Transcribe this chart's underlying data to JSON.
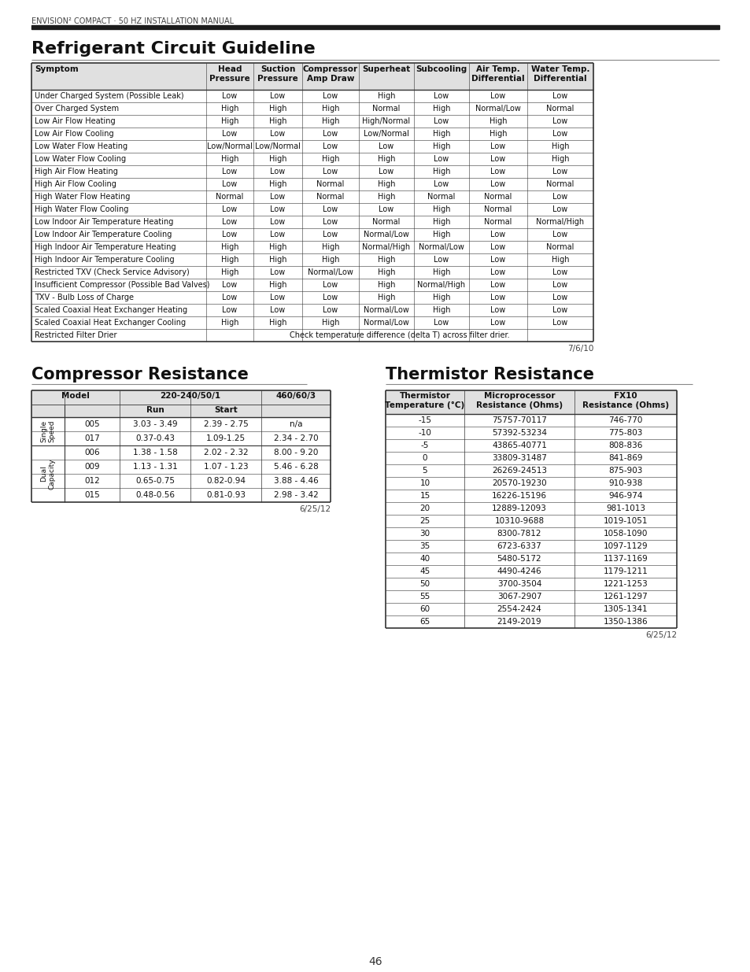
{
  "page_header": "ENVISION² COMPACT · 50 HZ INSTALLATION MANUAL",
  "section1_title": "Refrigerant Circuit Guideline",
  "section2_title": "Compressor Resistance",
  "section3_title": "Thermistor Resistance",
  "page_number": "46",
  "refrig_headers": [
    "Symptom",
    "Head\nPressure",
    "Suction\nPressure",
    "Compressor\nAmp Draw",
    "Superheat",
    "Subcooling",
    "Air Temp.\nDifferential",
    "Water Temp.\nDifferential"
  ],
  "refrig_data": [
    [
      "Under Charged System (Possible Leak)",
      "Low",
      "Low",
      "Low",
      "High",
      "Low",
      "Low",
      "Low"
    ],
    [
      "Over Charged System",
      "High",
      "High",
      "High",
      "Normal",
      "High",
      "Normal/Low",
      "Normal"
    ],
    [
      "Low Air Flow Heating",
      "High",
      "High",
      "High",
      "High/Normal",
      "Low",
      "High",
      "Low"
    ],
    [
      "Low Air Flow Cooling",
      "Low",
      "Low",
      "Low",
      "Low/Normal",
      "High",
      "High",
      "Low"
    ],
    [
      "Low Water Flow Heating",
      "Low/Normal",
      "Low/Normal",
      "Low",
      "Low",
      "High",
      "Low",
      "High"
    ],
    [
      "Low Water Flow Cooling",
      "High",
      "High",
      "High",
      "High",
      "Low",
      "Low",
      "High"
    ],
    [
      "High Air Flow Heating",
      "Low",
      "Low",
      "Low",
      "Low",
      "High",
      "Low",
      "Low"
    ],
    [
      "High Air Flow Cooling",
      "Low",
      "High",
      "Normal",
      "High",
      "Low",
      "Low",
      "Normal"
    ],
    [
      "High Water Flow Heating",
      "Normal",
      "Low",
      "Normal",
      "High",
      "Normal",
      "Normal",
      "Low"
    ],
    [
      "High Water Flow Cooling",
      "Low",
      "Low",
      "Low",
      "Low",
      "High",
      "Normal",
      "Low"
    ],
    [
      "Low Indoor Air Temperature Heating",
      "Low",
      "Low",
      "Low",
      "Normal",
      "High",
      "Normal",
      "Normal/High"
    ],
    [
      "Low Indoor Air Temperature Cooling",
      "Low",
      "Low",
      "Low",
      "Normal/Low",
      "High",
      "Low",
      "Low"
    ],
    [
      "High Indoor Air Temperature Heating",
      "High",
      "High",
      "High",
      "Normal/High",
      "Normal/Low",
      "Low",
      "Normal"
    ],
    [
      "High Indoor Air Temperature Cooling",
      "High",
      "High",
      "High",
      "High",
      "Low",
      "Low",
      "High"
    ],
    [
      "Restricted TXV (Check Service Advisory)",
      "High",
      "Low",
      "Normal/Low",
      "High",
      "High",
      "Low",
      "Low"
    ],
    [
      "Insufficient Compressor (Possible Bad Valves)",
      "Low",
      "High",
      "Low",
      "High",
      "Normal/High",
      "Low",
      "Low"
    ],
    [
      "TXV - Bulb Loss of Charge",
      "Low",
      "Low",
      "Low",
      "High",
      "High",
      "Low",
      "Low"
    ],
    [
      "Scaled Coaxial Heat Exchanger Heating",
      "Low",
      "Low",
      "Low",
      "Normal/Low",
      "High",
      "Low",
      "Low"
    ],
    [
      "Scaled Coaxial Heat Exchanger Cooling",
      "High",
      "High",
      "High",
      "Normal/Low",
      "Low",
      "Low",
      "Low"
    ],
    [
      "Restricted Filter Drier",
      "Check temperature difference (delta T) across filter drier.",
      "",
      "",
      "",
      "",
      "",
      ""
    ]
  ],
  "refrig_date": "7/6/10",
  "comp_data": [
    [
      "005",
      "3.03 - 3.49",
      "2.39 - 2.75",
      "n/a"
    ],
    [
      "017",
      "0.37-0.43",
      "1.09-1.25",
      "2.34 - 2.70"
    ],
    [
      "006",
      "1.38 - 1.58",
      "2.02 - 2.32",
      "8.00 - 9.20"
    ],
    [
      "009",
      "1.13 - 1.31",
      "1.07 - 1.23",
      "5.46 - 6.28"
    ],
    [
      "012",
      "0.65-0.75",
      "0.82-0.94",
      "3.88 - 4.46"
    ],
    [
      "015",
      "0.48-0.56",
      "0.81-0.93",
      "2.98 - 3.42"
    ]
  ],
  "comp_date": "6/25/12",
  "therm_headers": [
    "Thermistor\nTemperature (°C)",
    "Microprocessor\nResistance (Ohms)",
    "FX10\nResistance (Ohms)"
  ],
  "therm_data": [
    [
      "-15",
      "75757-70117",
      "746-770"
    ],
    [
      "-10",
      "57392-53234",
      "775-803"
    ],
    [
      "-5",
      "43865-40771",
      "808-836"
    ],
    [
      "0",
      "33809-31487",
      "841-869"
    ],
    [
      "5",
      "26269-24513",
      "875-903"
    ],
    [
      "10",
      "20570-19230",
      "910-938"
    ],
    [
      "15",
      "16226-15196",
      "946-974"
    ],
    [
      "20",
      "12889-12093",
      "981-1013"
    ],
    [
      "25",
      "10310-9688",
      "1019-1051"
    ],
    [
      "30",
      "8300-7812",
      "1058-1090"
    ],
    [
      "35",
      "6723-6337",
      "1097-1129"
    ],
    [
      "40",
      "5480-5172",
      "1137-1169"
    ],
    [
      "45",
      "4490-4246",
      "1179-1211"
    ],
    [
      "50",
      "3700-3504",
      "1221-1253"
    ],
    [
      "55",
      "3067-2907",
      "1261-1297"
    ],
    [
      "60",
      "2554-2424",
      "1305-1341"
    ],
    [
      "65",
      "2149-2019",
      "1350-1386"
    ]
  ],
  "therm_date": "6/25/12",
  "bg_color": "#ffffff",
  "dark_bar_color": "#1c1c1c",
  "table_border_color": "#333333",
  "header_bg_color": "#e0e0e0",
  "text_color": "#111111",
  "header_text_color": "#111111"
}
